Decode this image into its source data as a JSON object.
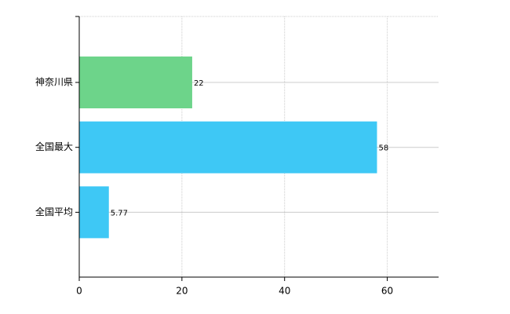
{
  "chart_data": {
    "type": "bar",
    "orientation": "horizontal",
    "categories": [
      "神奈川県",
      "全国最大",
      "全国平均"
    ],
    "values": [
      22,
      58,
      5.77
    ],
    "colors": [
      "#6dd48a",
      "#3ec8f5",
      "#3ec8f5"
    ],
    "xlim": [
      0,
      70
    ],
    "xticks": [
      0,
      20,
      40,
      60
    ],
    "grid": true
  }
}
